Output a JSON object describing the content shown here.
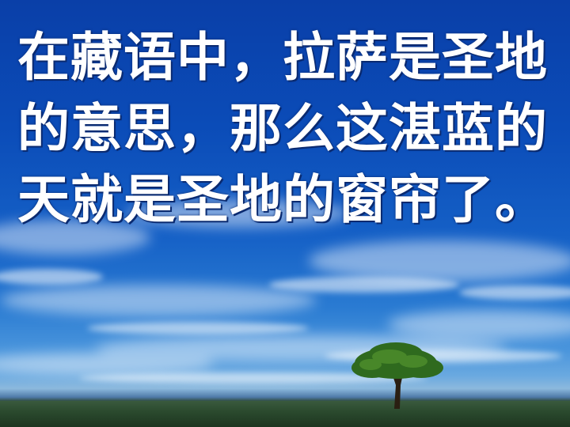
{
  "slide": {
    "text": "在藏语中，拉萨是圣地的意思，那么这湛蓝的天就是圣地的窗帘了。",
    "background_icon": "sky-with-tree",
    "colors": {
      "sky_top": "#0a3fa8",
      "sky_horizon": "#8cb9dd",
      "text": "#ffffff",
      "ground": "#2b4a2e"
    }
  }
}
